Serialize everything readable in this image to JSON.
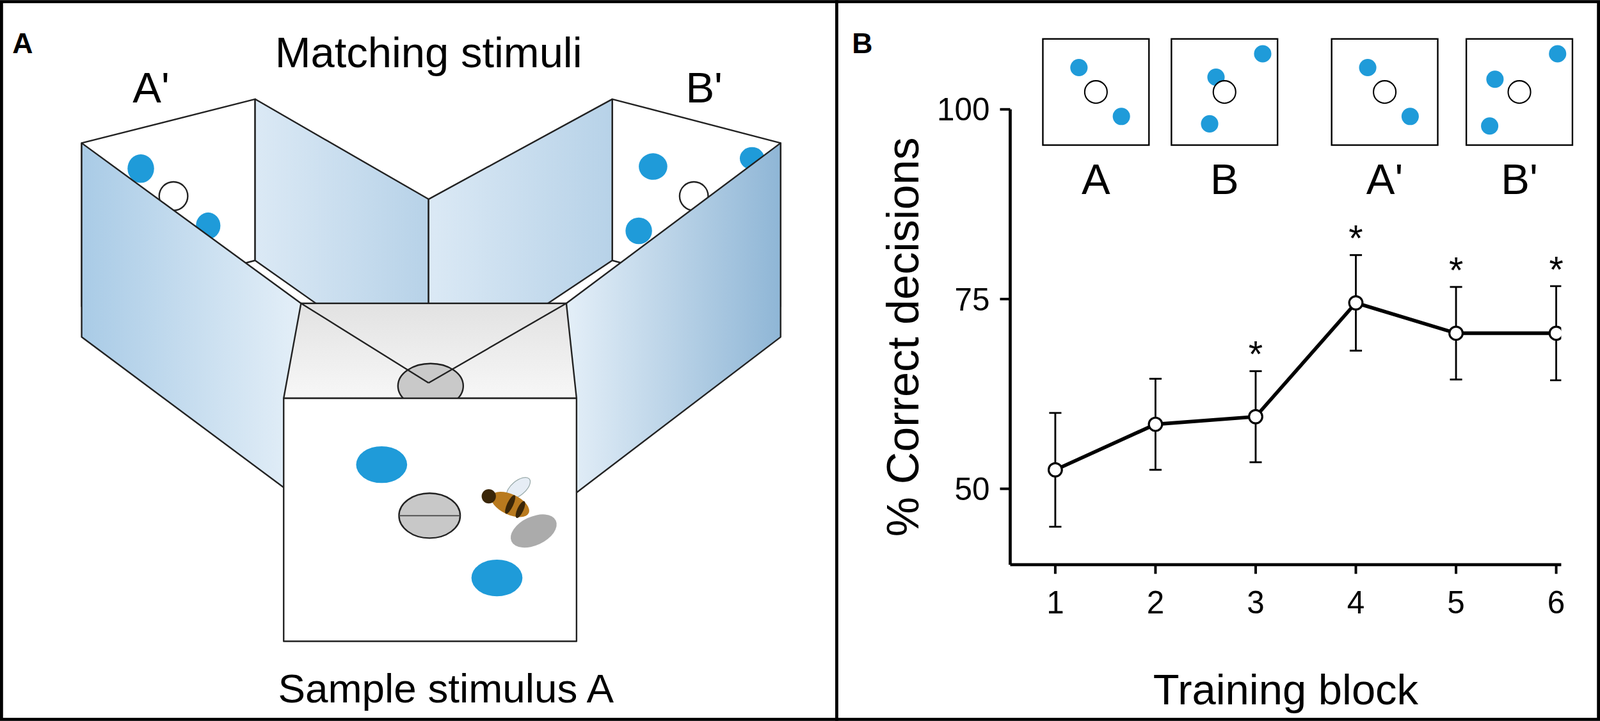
{
  "chart_data": {
    "type": "line",
    "x": [
      1,
      2,
      3,
      4,
      5,
      6
    ],
    "values": [
      52.5,
      58.5,
      59.5,
      74.5,
      70.5,
      70.5
    ],
    "errors": [
      7.5,
      6,
      6,
      6.3,
      6.1,
      6.2
    ],
    "xlabel": "Training block",
    "ylabel": "% Correct decisions",
    "xlim": [
      0.55,
      6.05
    ],
    "ylim": [
      40,
      100
    ],
    "xticks": [
      1,
      2,
      3,
      4,
      5,
      6
    ],
    "yticks": [
      50,
      75,
      100
    ],
    "color": "#000000",
    "marker": "open-circle",
    "grid": false,
    "annotations": [
      {
        "x": 3,
        "text": "*"
      },
      {
        "x": 4,
        "text": "*"
      },
      {
        "x": 5,
        "text": "*"
      },
      {
        "x": 6,
        "text": "*"
      }
    ]
  },
  "panel_labels": [
    "A",
    "B"
  ],
  "panel_a": {
    "title": "Matching stimuli",
    "matching_labels": [
      "A'",
      "B'"
    ],
    "sample_label": "Sample stimulus A"
  },
  "panel_b_insets": [
    "A",
    "B",
    "A'",
    "B'"
  ]
}
